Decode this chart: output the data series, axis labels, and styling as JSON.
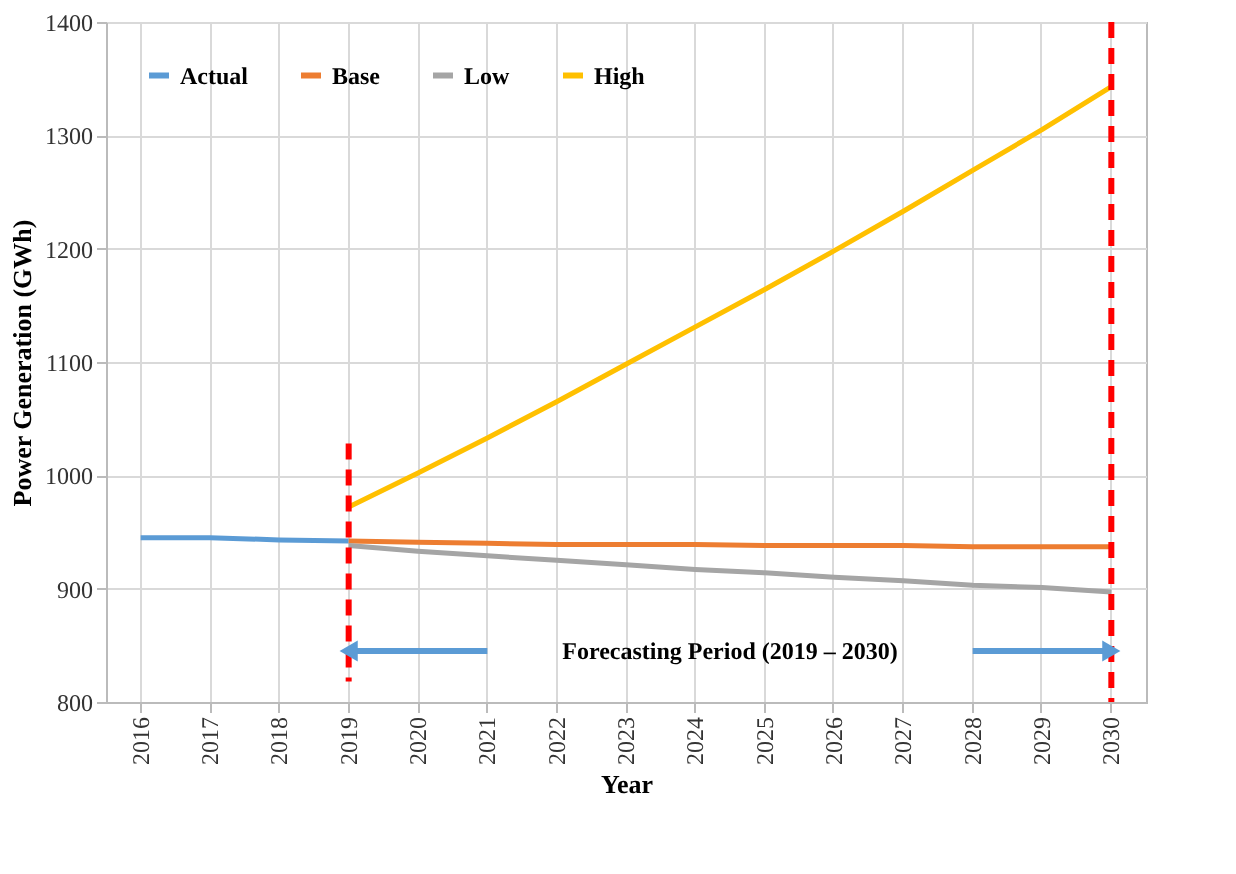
{
  "chart_data": {
    "type": "line",
    "xlabel": "Year",
    "ylabel": "Power Generation (GWh)",
    "categories": [
      "2016",
      "2017",
      "2018",
      "2019",
      "2020",
      "2021",
      "2022",
      "2023",
      "2024",
      "2025",
      "2026",
      "2027",
      "2028",
      "2029",
      "2030"
    ],
    "series": [
      {
        "name": "Actual",
        "color": "#5b9bd5",
        "values": [
          945,
          945,
          943,
          942,
          null,
          null,
          null,
          null,
          null,
          null,
          null,
          null,
          null,
          null,
          null
        ]
      },
      {
        "name": "Base",
        "color": "#ed7d31",
        "values": [
          null,
          null,
          null,
          942,
          941,
          940,
          939,
          939,
          939,
          938,
          938,
          938,
          937,
          937,
          937
        ]
      },
      {
        "name": "Low",
        "color": "#a5a5a5",
        "values": [
          null,
          null,
          null,
          938,
          933,
          929,
          925,
          921,
          917,
          914,
          910,
          907,
          903,
          901,
          897
        ]
      },
      {
        "name": "High",
        "color": "#ffc000",
        "values": [
          null,
          null,
          null,
          972,
          1002,
          1033,
          1065,
          1098,
          1131,
          1164,
          1198,
          1233,
          1269,
          1305,
          1343
        ]
      }
    ],
    "ylim": [
      800,
      1400
    ],
    "yticks": [
      800,
      900,
      {
        "value": 1000,
        "label": "1000"
      },
      {
        "value": 1100,
        "label": "1100"
      },
      {
        "value": 1200,
        "label": "1200"
      },
      {
        "value": 1300,
        "label": "1300"
      },
      {
        "value": 1400,
        "label": "1400"
      }
    ],
    "ref_lines": [
      {
        "axis": "x",
        "value": "2019",
        "color": "#ff0000",
        "line_style": "dashed"
      },
      {
        "axis": "x",
        "value": "2030",
        "color": "#ff0000",
        "line_style": "dashed"
      }
    ],
    "annotations": [
      "Forecasting Period (2019 – 2030)"
    ],
    "grid": true,
    "legend": "top left",
    "marker": "none",
    "line_style": "solid"
  }
}
